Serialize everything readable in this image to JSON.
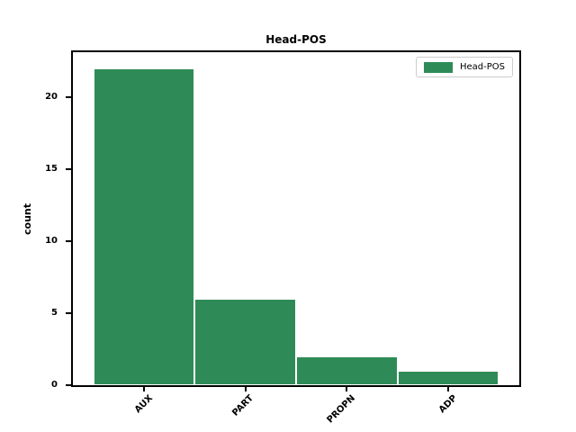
{
  "figure": {
    "background": "#ffffff"
  },
  "chart_data": {
    "type": "bar",
    "title": "Head-POS",
    "categories": [
      "AUX",
      "PART",
      "PROPN",
      "ADP"
    ],
    "values": [
      22,
      6,
      2,
      1
    ],
    "xlabel": "",
    "ylabel": "count",
    "ylim": [
      0,
      23.1
    ],
    "xlim": [
      -0.7,
      3.7
    ],
    "yticks": [
      0,
      5,
      10,
      15,
      20
    ],
    "bar_width": 1.0,
    "bar_color": "#2e8b57",
    "bar_edge_color": "#ffffff",
    "axis_color": "#000000",
    "grid": false,
    "legend": {
      "position": "upper right",
      "entries": [
        {
          "label": "Head-POS",
          "color": "#2e8b57"
        }
      ]
    }
  }
}
